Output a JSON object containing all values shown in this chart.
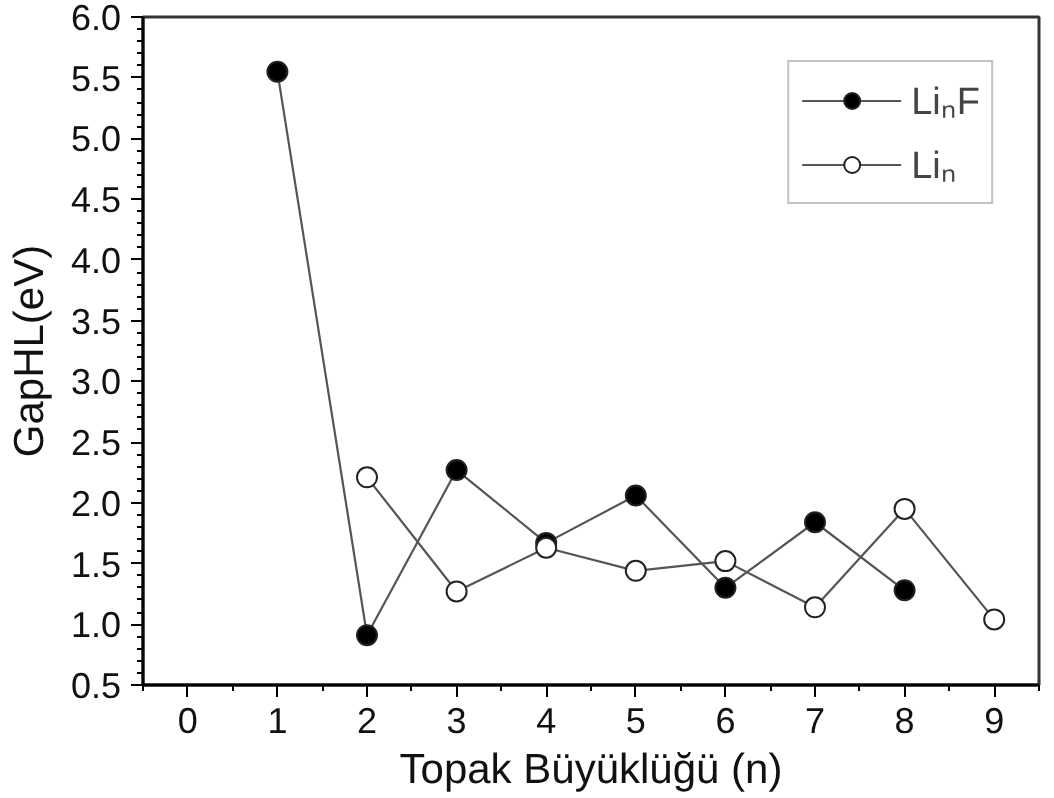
{
  "chart_data": {
    "type": "line",
    "xlabel": "Topak Büyüklüğü (n)",
    "ylabel": "GapHL(eV)",
    "xlim": [
      -0.5,
      9.5
    ],
    "xticks": [
      0,
      1,
      2,
      3,
      4,
      5,
      6,
      7,
      8,
      9
    ],
    "ylim": [
      0.5,
      6.0
    ],
    "yticks": [
      {
        "value": 0.5,
        "label": "0.5"
      },
      {
        "value": 1.0,
        "label": "1.0"
      },
      {
        "value": 1.5,
        "label": "1.5"
      },
      {
        "value": 2.0,
        "label": "2.0"
      },
      {
        "value": 2.5,
        "label": "2.5"
      },
      {
        "value": 3.0,
        "label": "3.0"
      },
      {
        "value": 3.5,
        "label": "3.5"
      },
      {
        "value": 4.0,
        "label": "4.0"
      },
      {
        "value": 4.5,
        "label": "4.5"
      },
      {
        "value": 5.0,
        "label": "5.0"
      },
      {
        "value": 5.5,
        "label": "5.5"
      },
      {
        "value": 6.0,
        "label": "6.0"
      }
    ],
    "legend": "top right",
    "grid": false,
    "marker": "circle",
    "line_style": "solid",
    "series": [
      {
        "name": "LiₙF",
        "color": "#000000",
        "x": [
          1,
          2,
          3,
          4,
          5,
          6,
          7,
          8
        ],
        "values": [
          5.55,
          0.91,
          2.27,
          1.67,
          2.06,
          1.3,
          1.84,
          1.28
        ]
      },
      {
        "name": "Liₙ",
        "color": "#ffffff",
        "x": [
          2,
          3,
          4,
          5,
          6,
          7,
          8,
          9
        ],
        "values": [
          2.21,
          1.27,
          1.63,
          1.44,
          1.52,
          1.14,
          1.95,
          1.04
        ]
      }
    ]
  }
}
